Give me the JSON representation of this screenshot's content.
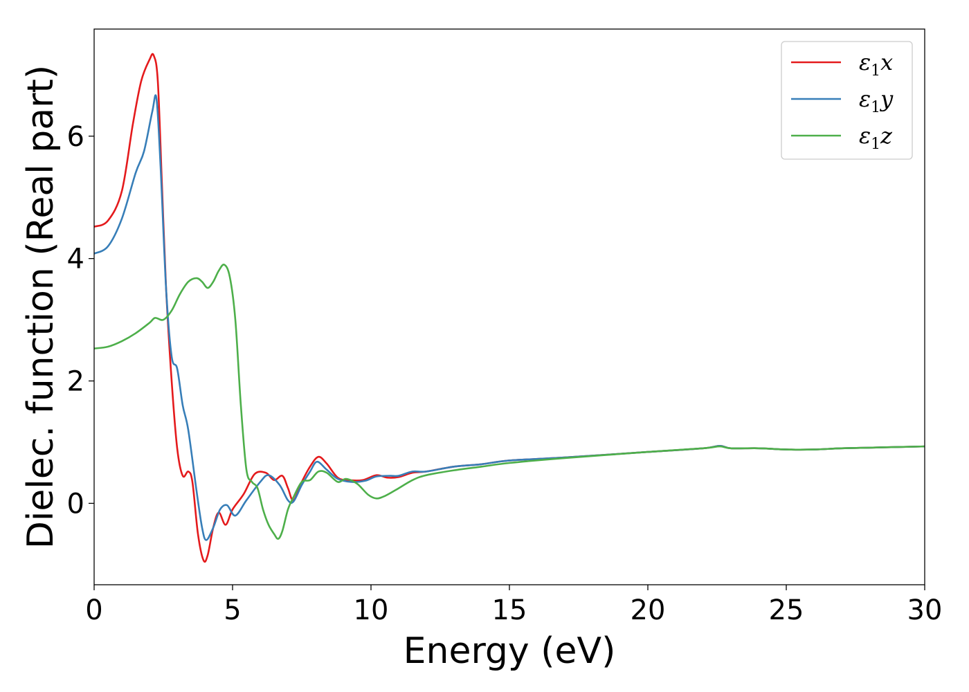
{
  "chart_data": {
    "type": "line",
    "title": "",
    "xlabel": "Energy (eV)",
    "ylabel": "Dielec. function (Real part)",
    "xlim": [
      0,
      30
    ],
    "ylim": [
      -1.33,
      7.75
    ],
    "xticks": [
      0,
      5,
      10,
      15,
      20,
      25,
      30
    ],
    "xtick_labels": [
      "0",
      "5",
      "10",
      "15",
      "20",
      "25",
      "30"
    ],
    "yticks": [
      0,
      2,
      4,
      6
    ],
    "ytick_labels": [
      "0",
      "2",
      "4",
      "6"
    ],
    "grid": false,
    "legend_position": "top-right",
    "series": [
      {
        "name": "ε1x",
        "legend_main": "ε",
        "legend_sub": "1",
        "legend_suffix": "x",
        "color": "#e41a1c",
        "points": [
          [
            0,
            4.52
          ],
          [
            0.5,
            4.62
          ],
          [
            1.0,
            5.1
          ],
          [
            1.4,
            6.2
          ],
          [
            1.7,
            6.9
          ],
          [
            2.0,
            7.25
          ],
          [
            2.15,
            7.32
          ],
          [
            2.3,
            6.9
          ],
          [
            2.45,
            5.2
          ],
          [
            2.6,
            3.5
          ],
          [
            2.8,
            2.0
          ],
          [
            3.0,
            0.9
          ],
          [
            3.2,
            0.45
          ],
          [
            3.4,
            0.52
          ],
          [
            3.55,
            0.35
          ],
          [
            3.75,
            -0.5
          ],
          [
            3.95,
            -0.93
          ],
          [
            4.1,
            -0.85
          ],
          [
            4.3,
            -0.4
          ],
          [
            4.5,
            -0.15
          ],
          [
            4.75,
            -0.35
          ],
          [
            5.0,
            -0.1
          ],
          [
            5.4,
            0.15
          ],
          [
            5.8,
            0.48
          ],
          [
            6.2,
            0.5
          ],
          [
            6.5,
            0.38
          ],
          [
            6.8,
            0.45
          ],
          [
            7.0,
            0.25
          ],
          [
            7.2,
            0.05
          ],
          [
            7.5,
            0.35
          ],
          [
            7.8,
            0.6
          ],
          [
            8.1,
            0.76
          ],
          [
            8.4,
            0.65
          ],
          [
            8.8,
            0.42
          ],
          [
            9.2,
            0.38
          ],
          [
            9.7,
            0.38
          ],
          [
            10.2,
            0.46
          ],
          [
            10.6,
            0.42
          ],
          [
            11.0,
            0.43
          ],
          [
            11.5,
            0.5
          ],
          [
            12.0,
            0.52
          ],
          [
            13.0,
            0.6
          ],
          [
            14.0,
            0.64
          ],
          [
            15.0,
            0.7
          ],
          [
            17.0,
            0.75
          ],
          [
            20.0,
            0.84
          ],
          [
            22.0,
            0.9
          ],
          [
            22.6,
            0.94
          ],
          [
            23.0,
            0.9
          ],
          [
            24.0,
            0.9
          ],
          [
            25.0,
            0.88
          ],
          [
            26.0,
            0.88
          ],
          [
            27.0,
            0.9
          ],
          [
            28.0,
            0.91
          ],
          [
            30.0,
            0.93
          ]
        ]
      },
      {
        "name": "ε1y",
        "legend_main": "ε",
        "legend_sub": "1",
        "legend_suffix": "y",
        "color": "#377eb8",
        "points": [
          [
            0,
            4.08
          ],
          [
            0.5,
            4.2
          ],
          [
            1.0,
            4.65
          ],
          [
            1.5,
            5.4
          ],
          [
            1.8,
            5.75
          ],
          [
            2.1,
            6.4
          ],
          [
            2.25,
            6.62
          ],
          [
            2.4,
            5.5
          ],
          [
            2.6,
            3.5
          ],
          [
            2.8,
            2.4
          ],
          [
            3.0,
            2.2
          ],
          [
            3.2,
            1.6
          ],
          [
            3.4,
            1.2
          ],
          [
            3.7,
            0.2
          ],
          [
            3.9,
            -0.4
          ],
          [
            4.05,
            -0.6
          ],
          [
            4.3,
            -0.4
          ],
          [
            4.55,
            -0.1
          ],
          [
            4.8,
            -0.03
          ],
          [
            5.1,
            -0.2
          ],
          [
            5.5,
            0.05
          ],
          [
            6.0,
            0.35
          ],
          [
            6.3,
            0.46
          ],
          [
            6.7,
            0.3
          ],
          [
            7.0,
            0.05
          ],
          [
            7.2,
            0.03
          ],
          [
            7.5,
            0.3
          ],
          [
            7.8,
            0.52
          ],
          [
            8.05,
            0.68
          ],
          [
            8.4,
            0.55
          ],
          [
            8.8,
            0.4
          ],
          [
            9.3,
            0.35
          ],
          [
            9.8,
            0.37
          ],
          [
            10.2,
            0.44
          ],
          [
            10.7,
            0.45
          ],
          [
            11.0,
            0.45
          ],
          [
            11.5,
            0.52
          ],
          [
            12.0,
            0.52
          ],
          [
            13.0,
            0.6
          ],
          [
            14.0,
            0.64
          ],
          [
            15.0,
            0.7
          ],
          [
            17.0,
            0.75
          ],
          [
            20.0,
            0.84
          ],
          [
            22.0,
            0.9
          ],
          [
            22.6,
            0.94
          ],
          [
            23.0,
            0.9
          ],
          [
            24.0,
            0.9
          ],
          [
            25.0,
            0.88
          ],
          [
            26.0,
            0.88
          ],
          [
            27.0,
            0.9
          ],
          [
            28.0,
            0.91
          ],
          [
            30.0,
            0.93
          ]
        ]
      },
      {
        "name": "ε1z",
        "legend_main": "ε",
        "legend_sub": "1",
        "legend_suffix": "z",
        "color": "#4daf4a",
        "points": [
          [
            0,
            2.53
          ],
          [
            0.5,
            2.56
          ],
          [
            1.0,
            2.65
          ],
          [
            1.5,
            2.78
          ],
          [
            2.0,
            2.95
          ],
          [
            2.2,
            3.03
          ],
          [
            2.5,
            3.0
          ],
          [
            2.8,
            3.15
          ],
          [
            3.1,
            3.42
          ],
          [
            3.4,
            3.62
          ],
          [
            3.7,
            3.68
          ],
          [
            3.9,
            3.62
          ],
          [
            4.1,
            3.52
          ],
          [
            4.3,
            3.62
          ],
          [
            4.5,
            3.8
          ],
          [
            4.7,
            3.9
          ],
          [
            4.9,
            3.7
          ],
          [
            5.1,
            3.0
          ],
          [
            5.3,
            1.6
          ],
          [
            5.5,
            0.55
          ],
          [
            5.7,
            0.35
          ],
          [
            5.9,
            0.25
          ],
          [
            6.1,
            -0.1
          ],
          [
            6.3,
            -0.35
          ],
          [
            6.5,
            -0.5
          ],
          [
            6.65,
            -0.58
          ],
          [
            6.8,
            -0.45
          ],
          [
            7.0,
            -0.1
          ],
          [
            7.2,
            0.1
          ],
          [
            7.5,
            0.35
          ],
          [
            7.8,
            0.38
          ],
          [
            8.1,
            0.52
          ],
          [
            8.4,
            0.5
          ],
          [
            8.8,
            0.35
          ],
          [
            9.1,
            0.4
          ],
          [
            9.5,
            0.32
          ],
          [
            9.9,
            0.14
          ],
          [
            10.2,
            0.08
          ],
          [
            10.5,
            0.12
          ],
          [
            10.9,
            0.22
          ],
          [
            11.5,
            0.38
          ],
          [
            12.0,
            0.46
          ],
          [
            13.0,
            0.54
          ],
          [
            14.0,
            0.6
          ],
          [
            15.0,
            0.66
          ],
          [
            17.0,
            0.74
          ],
          [
            20.0,
            0.84
          ],
          [
            22.0,
            0.9
          ],
          [
            22.6,
            0.93
          ],
          [
            23.0,
            0.9
          ],
          [
            24.0,
            0.9
          ],
          [
            25.0,
            0.88
          ],
          [
            26.0,
            0.88
          ],
          [
            27.0,
            0.9
          ],
          [
            28.0,
            0.91
          ],
          [
            30.0,
            0.93
          ]
        ]
      }
    ]
  }
}
